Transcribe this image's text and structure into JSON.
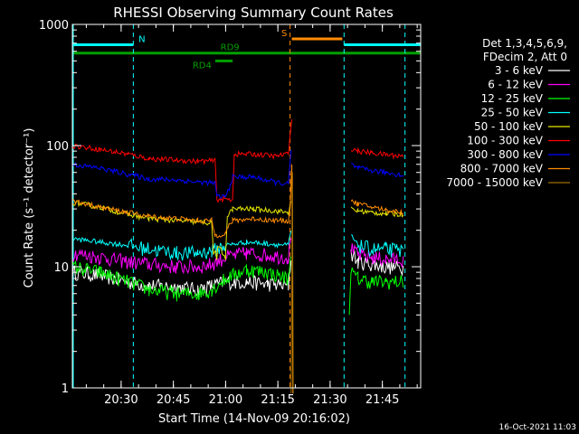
{
  "chart_data": {
    "type": "line",
    "title": "RHESSI Observing Summary Count Rates",
    "xlabel": "Start Time (14-Nov-09 20:16:02)",
    "ylabel": "Count Rate (s⁻¹ detector⁻¹)",
    "yscale": "log",
    "ylim": [
      1,
      1000
    ],
    "xlim_minutes": [
      0,
      100
    ],
    "x_ticks": [
      {
        "minute": 14,
        "label": "20:30"
      },
      {
        "minute": 29,
        "label": "20:45"
      },
      {
        "minute": 44,
        "label": "21:00"
      },
      {
        "minute": 59,
        "label": "21:15"
      },
      {
        "minute": 74,
        "label": "21:30"
      },
      {
        "minute": 89,
        "label": "21:45"
      }
    ],
    "y_ticks": [
      {
        "value": 1,
        "label": "1"
      },
      {
        "value": 10,
        "label": "10"
      },
      {
        "value": 100,
        "label": "100"
      },
      {
        "value": 1000,
        "label": "1000"
      }
    ],
    "legend_header": [
      "Det 1,3,4,5,6,9,",
      "FDecim 2, Att 0"
    ],
    "legend_position": "right",
    "timestamp": "16-Oct-2021 11:03",
    "flags": [
      {
        "label": "N",
        "color": "#00ffff",
        "segments": [
          [
            0,
            17.5
          ],
          [
            78,
            100
          ]
        ],
        "value": 680,
        "label_at": 19
      },
      {
        "label": "S",
        "color": "#ff8c00",
        "segments": [
          [
            63,
            77.5
          ]
        ],
        "value": 760,
        "label_at": 60
      },
      {
        "label": "RD9",
        "color": "#00a000",
        "segments": [
          [
            0,
            100
          ]
        ],
        "value": 580,
        "label_at": 42.5
      },
      {
        "label": "RD4",
        "color": "#00a000",
        "segments": [
          [
            41,
            46
          ]
        ],
        "value": 500,
        "label_at": 34.5
      }
    ],
    "vlines": [
      {
        "minute": 17.5,
        "color": "#00ffff"
      },
      {
        "minute": 62.5,
        "color": "#ff8c00"
      },
      {
        "minute": 78,
        "color": "#00ffff"
      },
      {
        "minute": 95.5,
        "color": "#00ffff"
      }
    ],
    "series": [
      {
        "name": "3 - 6 keV",
        "color": "#ffffff",
        "segments": [
          [
            [
              0,
              9
            ],
            [
              8,
              8.5
            ],
            [
              16,
              7.5
            ],
            [
              22,
              7
            ],
            [
              30,
              6.8
            ],
            [
              36,
              6.5
            ],
            [
              40,
              7
            ],
            [
              44,
              7.5
            ],
            [
              50,
              7.5
            ],
            [
              56,
              7.2
            ],
            [
              62,
              7
            ],
            [
              62.8,
              12
            ]
          ],
          [
            [
              80,
              13
            ],
            [
              82,
              11
            ],
            [
              86,
              10.5
            ],
            [
              90,
              10
            ],
            [
              95,
              9.8
            ]
          ]
        ]
      },
      {
        "name": "6 - 12 keV",
        "color": "#ff00ff",
        "segments": [
          [
            [
              0,
              13
            ],
            [
              8,
              12
            ],
            [
              16,
              11
            ],
            [
              22,
              10.5
            ],
            [
              30,
              10
            ],
            [
              36,
              10
            ],
            [
              40,
              10.5
            ],
            [
              44,
              12
            ],
            [
              50,
              13
            ],
            [
              56,
              12.5
            ],
            [
              62,
              12
            ],
            [
              62.8,
              18
            ]
          ],
          [
            [
              80,
              14
            ],
            [
              82,
              12.5
            ],
            [
              86,
              12
            ],
            [
              90,
              11.5
            ],
            [
              95,
              11.5
            ]
          ]
        ]
      },
      {
        "name": "12 - 25 keV",
        "color": "#00ff00",
        "segments": [
          [
            [
              0,
              10
            ],
            [
              8,
              9
            ],
            [
              16,
              7.5
            ],
            [
              22,
              6.5
            ],
            [
              30,
              6
            ],
            [
              36,
              6
            ],
            [
              40,
              6.5
            ],
            [
              44,
              8
            ],
            [
              50,
              9.5
            ],
            [
              56,
              9
            ],
            [
              62,
              8
            ],
            [
              62.8,
              14
            ]
          ],
          [
            [
              79.5,
              4
            ],
            [
              80,
              9
            ],
            [
              82,
              8
            ],
            [
              86,
              7.5
            ],
            [
              90,
              7.5
            ],
            [
              95,
              7.5
            ]
          ]
        ]
      },
      {
        "name": "25 - 50 keV",
        "color": "#00ffff",
        "segments": [
          [
            [
              0,
              17
            ],
            [
              8,
              16
            ],
            [
              16,
              15
            ],
            [
              22,
              14
            ],
            [
              30,
              13
            ],
            [
              36,
              13
            ],
            [
              40,
              13.5
            ],
            [
              44,
              15
            ],
            [
              50,
              16
            ],
            [
              56,
              15.5
            ],
            [
              62,
              15
            ],
            [
              62.8,
              20
            ]
          ],
          [
            [
              80,
              18
            ],
            [
              82,
              15
            ],
            [
              86,
              14
            ],
            [
              90,
              14
            ],
            [
              95,
              13.5
            ]
          ]
        ]
      },
      {
        "name": "50 - 100 keV",
        "color": "#e6e600",
        "segments": [
          [
            [
              0,
              34
            ],
            [
              8,
              31
            ],
            [
              16,
              27
            ],
            [
              22,
              25
            ],
            [
              30,
              24
            ],
            [
              40,
              23
            ],
            [
              40.5,
              13
            ],
            [
              44,
              13
            ],
            [
              44.5,
              26
            ],
            [
              46,
              30
            ],
            [
              52,
              30
            ],
            [
              58,
              29
            ],
            [
              62,
              28
            ],
            [
              62.8,
              34
            ]
          ],
          [
            [
              80,
              30
            ],
            [
              82,
              29
            ],
            [
              86,
              28
            ],
            [
              90,
              27.5
            ],
            [
              95,
              27
            ]
          ]
        ]
      },
      {
        "name": "100 - 300 keV",
        "color": "#ff0000",
        "segments": [
          [
            [
              0,
              100
            ],
            [
              8,
              93
            ],
            [
              16,
              85
            ],
            [
              22,
              78
            ],
            [
              30,
              76
            ],
            [
              36,
              74
            ],
            [
              41,
              75
            ],
            [
              41.5,
              36
            ],
            [
              46,
              36
            ],
            [
              46.5,
              85
            ],
            [
              52,
              85
            ],
            [
              58,
              82
            ],
            [
              62,
              85
            ],
            [
              62.5,
              120
            ],
            [
              63,
              165
            ]
          ],
          [
            [
              80,
              95
            ],
            [
              82,
              90
            ],
            [
              86,
              87
            ],
            [
              90,
              84
            ],
            [
              95,
              82
            ]
          ]
        ]
      },
      {
        "name": "300 - 800 keV",
        "color": "#0000ff",
        "segments": [
          [
            [
              0,
              70
            ],
            [
              8,
              65
            ],
            [
              16,
              58
            ],
            [
              22,
              53
            ],
            [
              30,
              52
            ],
            [
              36,
              50
            ],
            [
              41,
              49
            ],
            [
              41.5,
              38
            ],
            [
              44,
              38
            ],
            [
              45,
              44
            ],
            [
              46,
              55
            ],
            [
              52,
              55
            ],
            [
              58,
              50
            ],
            [
              62,
              48
            ],
            [
              62.8,
              90
            ]
          ],
          [
            [
              80,
              70
            ],
            [
              82,
              65
            ],
            [
              86,
              62
            ],
            [
              90,
              60
            ],
            [
              95,
              57
            ]
          ]
        ]
      },
      {
        "name": "800 - 7000 keV",
        "color": "#ff8c00",
        "segments": [
          [
            [
              0,
              35
            ],
            [
              8,
              31
            ],
            [
              16,
              28
            ],
            [
              22,
              26
            ],
            [
              30,
              25
            ],
            [
              36,
              24
            ],
            [
              40,
              24
            ],
            [
              41,
              18
            ],
            [
              44,
              19
            ],
            [
              45,
              22
            ],
            [
              46,
              24
            ],
            [
              52,
              25
            ],
            [
              58,
              24
            ],
            [
              62,
              24
            ],
            [
              62.5,
              30
            ],
            [
              63,
              70
            ],
            [
              63.3,
              0.9
            ]
          ],
          [
            [
              80,
              35
            ],
            [
              82,
              33
            ],
            [
              86,
              31
            ],
            [
              90,
              29.5
            ],
            [
              95,
              28
            ]
          ]
        ]
      },
      {
        "name": "7000 - 15000 keV",
        "color": "#a07000",
        "segments": [
          [
            [
              62.8,
              0.9
            ],
            [
              63.2,
              60
            ],
            [
              63.4,
              0.9
            ]
          ]
        ]
      }
    ]
  }
}
